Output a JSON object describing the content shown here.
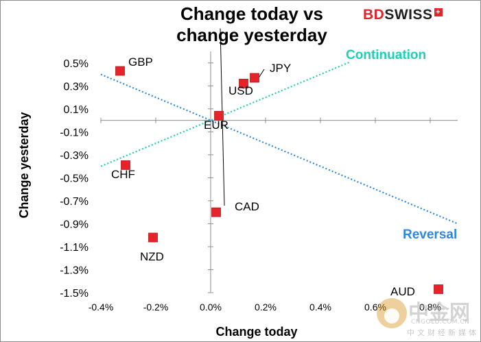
{
  "chart_data": {
    "type": "scatter",
    "title": "Change today vs change yesterday",
    "title_lines": [
      "Change today vs",
      "change yesterday"
    ],
    "xlabel": "Change today",
    "ylabel": "Change yesterday",
    "xlim": [
      -0.004,
      0.009
    ],
    "ylim": [
      -0.015,
      0.006
    ],
    "x_ticks": [
      {
        "value": -0.004,
        "label": "-0.4%"
      },
      {
        "value": -0.002,
        "label": "-0.2%"
      },
      {
        "value": 0.0,
        "label": "0.0%"
      },
      {
        "value": 0.002,
        "label": "0.2%"
      },
      {
        "value": 0.004,
        "label": "0.4%"
      },
      {
        "value": 0.006,
        "label": "0.6%"
      },
      {
        "value": 0.008,
        "label": "0.8%"
      }
    ],
    "y_ticks": [
      {
        "value": 0.005,
        "label": "0.5%"
      },
      {
        "value": 0.003,
        "label": "0.3%"
      },
      {
        "value": 0.001,
        "label": "0.1%"
      },
      {
        "value": -0.001,
        "label": "-0.1%"
      },
      {
        "value": -0.003,
        "label": "-0.3%"
      },
      {
        "value": -0.005,
        "label": "-0.5%"
      },
      {
        "value": -0.007,
        "label": "-0.7%"
      },
      {
        "value": -0.009,
        "label": "-0.9%"
      },
      {
        "value": -0.011,
        "label": "-1.1%"
      },
      {
        "value": -0.013,
        "label": "-1.3%"
      },
      {
        "value": -0.015,
        "label": "-1.5%"
      }
    ],
    "points": [
      {
        "name": "GBP",
        "x": -0.0033,
        "y": 0.0043
      },
      {
        "name": "JPY",
        "x": 0.0016,
        "y": 0.0037
      },
      {
        "name": "USD",
        "x": 0.0012,
        "y": 0.0032
      },
      {
        "name": "EUR",
        "x": 0.0003,
        "y": 0.0004
      },
      {
        "name": "CHF",
        "x": -0.0031,
        "y": -0.0039
      },
      {
        "name": "CAD",
        "x": 0.0002,
        "y": -0.008
      },
      {
        "name": "NZD",
        "x": -0.0021,
        "y": -0.0102
      },
      {
        "name": "AUD",
        "x": 0.0083,
        "y": -0.0147
      }
    ],
    "lines": [
      {
        "name": "Continuation",
        "x": [
          -0.004,
          0.0051
        ],
        "y": [
          -0.004,
          0.0051
        ]
      },
      {
        "name": "Reversal",
        "x": [
          -0.004,
          0.009
        ],
        "y": [
          0.004,
          -0.009
        ]
      }
    ],
    "marker_color": "#e4232b",
    "continuation_color": "#1fcfb3",
    "reversal_color": "#2e86de",
    "grid": false,
    "legend": "none"
  },
  "logo": {
    "bd": "BD",
    "swiss": "SWISS",
    "cross": "+"
  },
  "watermark": {
    "cn": "中金网",
    "url": "CNGOLD.COM.CN",
    "sub": "中文财经新媒体"
  }
}
